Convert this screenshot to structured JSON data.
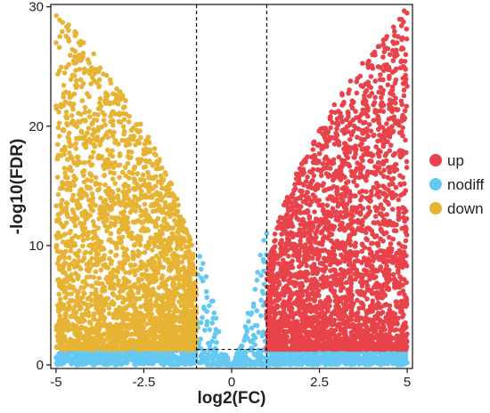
{
  "chart_data": {
    "type": "scatter",
    "title": "",
    "xlabel": "log2(FC)",
    "ylabel": "-log10(FDR)",
    "xlim": [
      -5.15,
      5.15
    ],
    "ylim": [
      -0.3,
      30.2
    ],
    "x_ticks": [
      -5,
      -2.5,
      0,
      2.5,
      5
    ],
    "x_tick_labels": [
      "-5",
      "-2.5",
      "0",
      "2.5",
      "5"
    ],
    "y_ticks": [
      0,
      10,
      20,
      30
    ],
    "y_tick_labels": [
      "0",
      "10",
      "20",
      "30"
    ],
    "thresholds": {
      "log2fc": [
        -1,
        1
      ],
      "neg_log10_fdr": 1.3
    },
    "grid": false,
    "legend_position": "right",
    "series": [
      {
        "name": "up",
        "color": "#e8434a",
        "x_range": [
          1,
          5
        ],
        "y_range": [
          1.3,
          30
        ]
      },
      {
        "name": "nodiff",
        "color": "#64c8f2",
        "x_range": [
          -5,
          5
        ],
        "y_range": [
          0,
          13
        ]
      },
      {
        "name": "down",
        "color": "#e6b335",
        "x_range": [
          -5,
          -1
        ],
        "y_range": [
          1.3,
          30
        ]
      }
    ]
  }
}
